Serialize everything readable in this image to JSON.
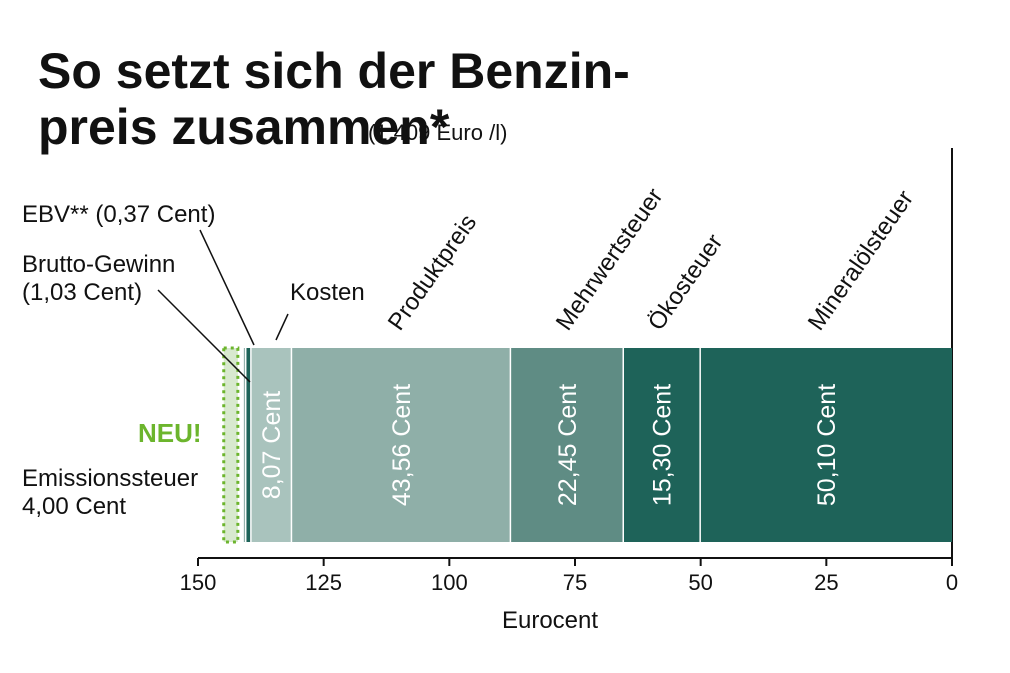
{
  "chart_data": {
    "type": "bar",
    "orientation": "horizontal-stacked",
    "title_line1": "So setzt sich der Benzin-",
    "title_line2": "preis zusammen*",
    "subtitle": "(1,409 Euro /l)",
    "xlabel": "Eurocent",
    "xlim": [
      150,
      0
    ],
    "ticks": [
      "150",
      "125",
      "100",
      "75",
      "50",
      "25",
      "0"
    ],
    "segments": [
      {
        "name": "Mineralölsteuer",
        "value": 50.1,
        "value_label": "50,10 Cent",
        "color": "#1e6359"
      },
      {
        "name": "Ökosteuer",
        "value": 15.3,
        "value_label": "15,30 Cent",
        "color": "#1e6359"
      },
      {
        "name": "Mehrwertsteuer",
        "value": 22.45,
        "value_label": "22,45 Cent",
        "color": "#5f8c84"
      },
      {
        "name": "Produktpreis",
        "value": 43.56,
        "value_label": "43,56 Cent",
        "color": "#8fafa8"
      },
      {
        "name": "Kosten",
        "value": 8.07,
        "value_label": "8,07 Cent",
        "color": "#a9c3bd"
      },
      {
        "name": "Brutto-Gewinn",
        "value": 1.03,
        "value_label": "",
        "color": "#1e6359"
      },
      {
        "name": "EBV**",
        "value": 0.37,
        "value_label": "",
        "color": "#8fafa8"
      }
    ],
    "annotations": {
      "ebv": "EBV** (0,37 Cent)",
      "brutto_line1": "Brutto-Gewinn",
      "brutto_line2": "(1,03 Cent)",
      "neu": "NEU!",
      "emission_line1": "Emissionssteuer",
      "emission_line2": "4,00 Cent"
    },
    "new_segment": {
      "name": "Emissionssteuer",
      "value": 4.0,
      "fill": "#d8e9cf",
      "border": "#6cb52d"
    },
    "colors": {
      "accent_green": "#6cb52d",
      "dark_teal": "#1e6359"
    }
  }
}
